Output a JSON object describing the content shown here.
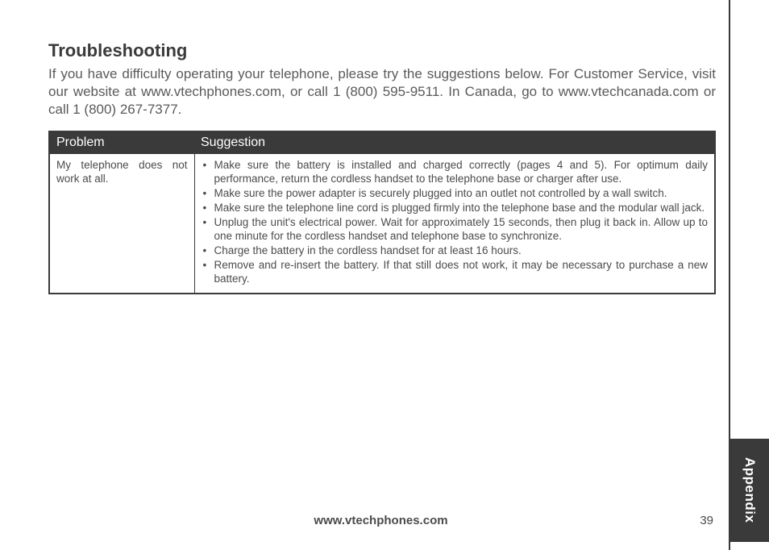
{
  "title": "Troubleshooting",
  "intro": "If you have difficulty operating your telephone, please try the suggestions below. For Customer Service, visit our website at www.vtechphones.com, or call 1 (800) 595-9511. In Canada, go to www.vtechcanada.com or call 1 (800) 267-7377.",
  "table": {
    "header_problem": "Problem",
    "header_suggestion": "Suggestion",
    "rows": [
      {
        "problem": "My telephone does not work at all.",
        "suggestions": [
          "Make sure the battery is installed and charged correctly (pages 4 and 5). For optimum daily performance, return the cordless handset to the telephone base or charger after use.",
          "Make sure the power adapter is securely plugged into an outlet not controlled by a wall switch.",
          "Make sure the telephone line cord is plugged firmly into the telephone base and the modular wall jack.",
          "Unplug the unit's electrical power. Wait for approximately 15 seconds, then plug it back in. Allow up to one minute for the cordless handset and telephone base to synchronize.",
          "Charge the battery in the cordless handset for at least 16 hours.",
          "Remove and re-insert the battery. If that still does not work, it may be necessary to purchase a new battery."
        ]
      }
    ]
  },
  "footer_url": "www.vtechphones.com",
  "page_number": "39",
  "side_tab": "Appendix"
}
